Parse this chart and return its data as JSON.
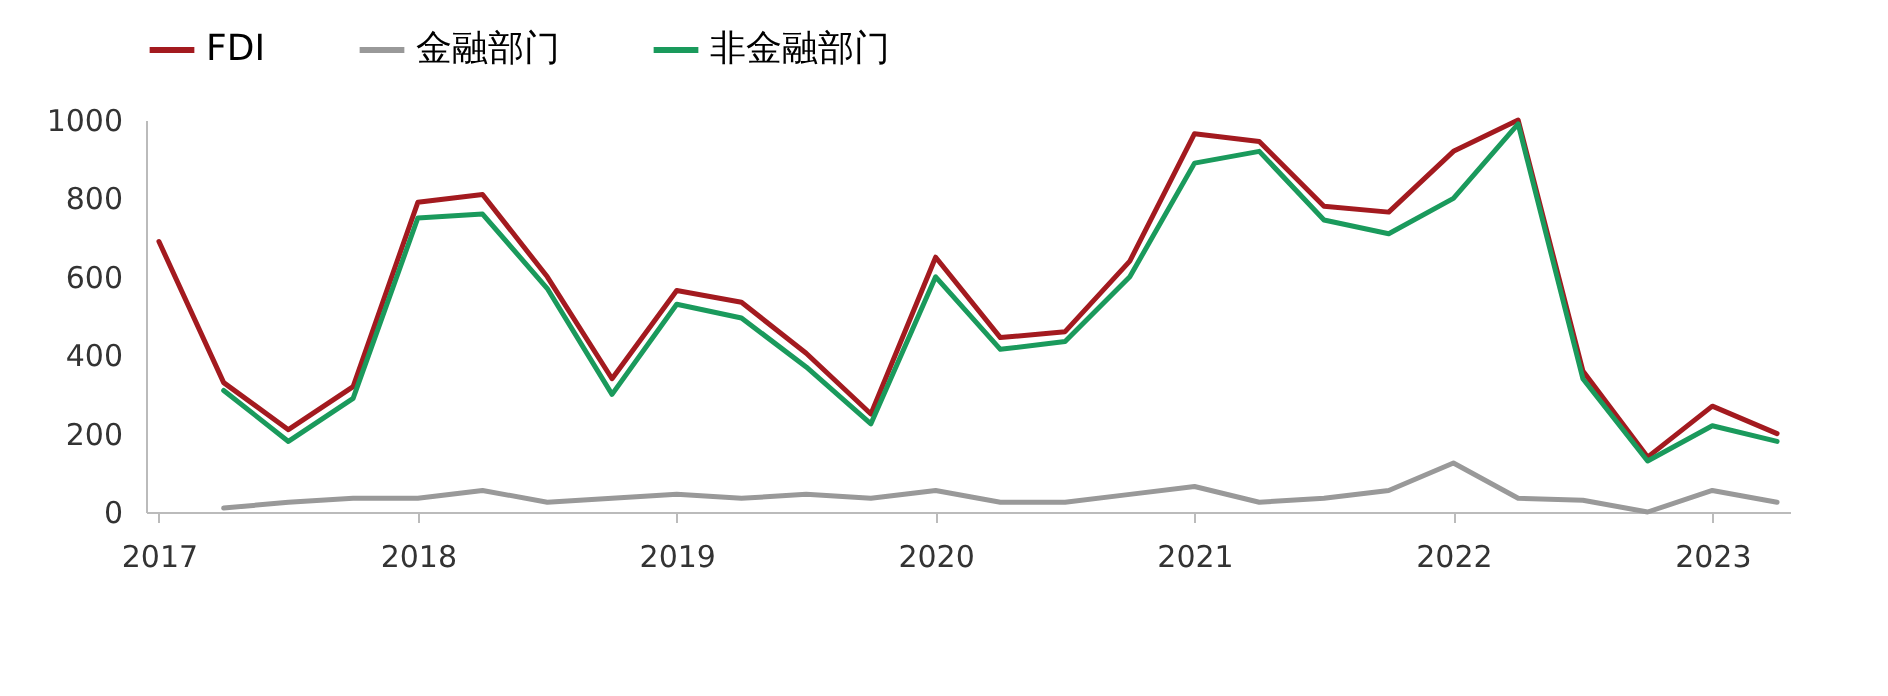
{
  "chart_data": {
    "type": "line",
    "categories": [
      "2017",
      null,
      null,
      null,
      "2018",
      null,
      null,
      null,
      "2019",
      null,
      null,
      null,
      "2020",
      null,
      null,
      null,
      "2021",
      null,
      null,
      null,
      "2022",
      null,
      null,
      null,
      "2023",
      null
    ],
    "series": [
      {
        "name": "FDI",
        "color": "#a31a1f",
        "values": [
          690,
          330,
          210,
          320,
          790,
          810,
          600,
          340,
          565,
          535,
          405,
          250,
          650,
          445,
          460,
          640,
          965,
          945,
          780,
          765,
          920,
          1000,
          360,
          140,
          270,
          200
        ]
      },
      {
        "name": "金融部门",
        "color": "#999999",
        "values": [
          null,
          10,
          25,
          35,
          35,
          55,
          25,
          35,
          45,
          35,
          45,
          35,
          55,
          25,
          25,
          45,
          65,
          25,
          35,
          55,
          125,
          35,
          30,
          0,
          55,
          25
        ]
      },
      {
        "name": "非金融部门",
        "color": "#1a9a5c",
        "values": [
          null,
          310,
          180,
          290,
          750,
          760,
          570,
          300,
          530,
          495,
          370,
          225,
          600,
          415,
          435,
          600,
          890,
          920,
          745,
          710,
          800,
          990,
          340,
          130,
          220,
          180
        ]
      }
    ],
    "ylim": [
      0,
      1000
    ],
    "yticks": [
      0,
      200,
      400,
      600,
      800,
      1000
    ],
    "legend": "top",
    "grid": false,
    "marker": "none",
    "line_style": "solid"
  }
}
